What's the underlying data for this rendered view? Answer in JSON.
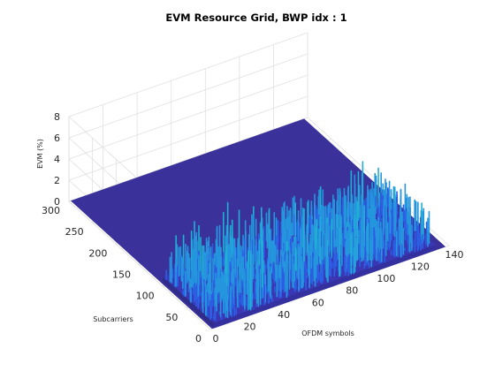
{
  "chart_data": {
    "type": "surface3d",
    "title": "EVM Resource Grid, BWP idx : 1",
    "xlabel": "OFDM symbols",
    "ylabel": "Subcarriers",
    "zlabel": "EVM (%)",
    "xlim": [
      0,
      140
    ],
    "ylim": [
      0,
      300
    ],
    "zlim": [
      0,
      8
    ],
    "xticks": [
      "0",
      "20",
      "40",
      "60",
      "80",
      "100",
      "120",
      "140"
    ],
    "yticks": [
      "0",
      "50",
      "100",
      "150",
      "200",
      "250",
      "300"
    ],
    "zticks": [
      "0",
      "2",
      "4",
      "6",
      "8"
    ],
    "grid": true,
    "colormap": "parula",
    "colors": {
      "floor": "#3a329a",
      "base": "#3b36b4",
      "spike_low": "#2c5ee4",
      "spike_high": "#1fb0d4",
      "grid": "#e0e0e0"
    },
    "data_region": {
      "ofdm_symbols": [
        2,
        132
      ],
      "subcarriers": [
        0,
        108
      ],
      "typical_evm_percent": [
        0.5,
        3.5
      ],
      "max_evm_percent": 6.5
    }
  }
}
